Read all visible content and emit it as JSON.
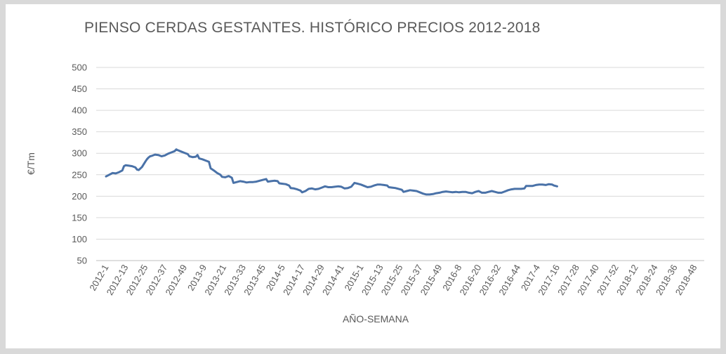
{
  "chart_data": {
    "type": "line",
    "title": "PIENSO CERDAS GESTANTES. HISTÓRICO PRECIOS 2012-2018",
    "xlabel": "AÑO-SEMANA",
    "ylabel": "€/Tm",
    "ylim": [
      50,
      500
    ],
    "yticks": [
      50,
      100,
      150,
      200,
      250,
      300,
      350,
      400,
      450,
      500
    ],
    "grid": true,
    "legend": "none",
    "line_color": "#4a72a8",
    "x_categories": [
      "2012-1",
      "2012-13",
      "2012-25",
      "2012-37",
      "2012-49",
      "2013-9",
      "2013-21",
      "2013-33",
      "2013-45",
      "2014-5",
      "2014-17",
      "2014-29",
      "2014-41",
      "2015-1",
      "2015-13",
      "2015-25",
      "2015-37",
      "2015-49",
      "2016-8",
      "2016-20",
      "2016-32",
      "2016-44",
      "2017-4",
      "2017-16",
      "2017-28",
      "2017-40",
      "2017-52",
      "2018-12",
      "2018-24",
      "2018-36",
      "2018-48"
    ],
    "series": [
      {
        "points": [
          [
            0,
            246
          ],
          [
            2,
            250
          ],
          [
            4,
            254
          ],
          [
            6,
            253
          ],
          [
            8,
            256
          ],
          [
            10,
            260
          ],
          [
            11,
            270
          ],
          [
            12,
            272
          ],
          [
            14,
            271
          ],
          [
            16,
            270
          ],
          [
            18,
            267
          ],
          [
            19,
            262
          ],
          [
            20,
            261
          ],
          [
            22,
            268
          ],
          [
            24,
            280
          ],
          [
            25,
            286
          ],
          [
            26,
            290
          ],
          [
            27,
            293
          ],
          [
            28,
            294
          ],
          [
            30,
            297
          ],
          [
            32,
            296
          ],
          [
            34,
            293
          ],
          [
            36,
            295
          ],
          [
            38,
            299
          ],
          [
            40,
            302
          ],
          [
            42,
            305
          ],
          [
            43,
            309
          ],
          [
            44,
            307
          ],
          [
            46,
            304
          ],
          [
            48,
            301
          ],
          [
            50,
            298
          ],
          [
            51,
            293
          ],
          [
            53,
            291
          ],
          [
            55,
            292
          ],
          [
            56,
            296
          ],
          [
            57,
            288
          ],
          [
            59,
            286
          ],
          [
            61,
            283
          ],
          [
            63,
            280
          ],
          [
            64,
            265
          ],
          [
            66,
            260
          ],
          [
            68,
            254
          ],
          [
            70,
            250
          ],
          [
            71,
            245
          ],
          [
            73,
            244
          ],
          [
            75,
            247
          ],
          [
            77,
            243
          ],
          [
            78,
            231
          ],
          [
            80,
            233
          ],
          [
            82,
            235
          ],
          [
            84,
            234
          ],
          [
            86,
            232
          ],
          [
            88,
            233
          ],
          [
            90,
            233
          ],
          [
            92,
            234
          ],
          [
            94,
            236
          ],
          [
            96,
            238
          ],
          [
            98,
            240
          ],
          [
            99,
            234
          ],
          [
            101,
            235
          ],
          [
            103,
            236
          ],
          [
            105,
            235
          ],
          [
            106,
            230
          ],
          [
            108,
            229
          ],
          [
            110,
            228
          ],
          [
            112,
            225
          ],
          [
            113,
            219
          ],
          [
            115,
            218
          ],
          [
            117,
            216
          ],
          [
            119,
            213
          ],
          [
            120,
            209
          ],
          [
            122,
            212
          ],
          [
            124,
            217
          ],
          [
            126,
            218
          ],
          [
            128,
            216
          ],
          [
            130,
            217
          ],
          [
            132,
            220
          ],
          [
            134,
            223
          ],
          [
            136,
            221
          ],
          [
            138,
            221
          ],
          [
            140,
            222
          ],
          [
            142,
            223
          ],
          [
            144,
            222
          ],
          [
            146,
            218
          ],
          [
            148,
            219
          ],
          [
            150,
            222
          ],
          [
            152,
            231
          ],
          [
            154,
            229
          ],
          [
            156,
            227
          ],
          [
            158,
            224
          ],
          [
            160,
            221
          ],
          [
            162,
            222
          ],
          [
            164,
            225
          ],
          [
            166,
            227
          ],
          [
            168,
            227
          ],
          [
            170,
            226
          ],
          [
            172,
            225
          ],
          [
            173,
            221
          ],
          [
            175,
            220
          ],
          [
            177,
            219
          ],
          [
            179,
            217
          ],
          [
            181,
            215
          ],
          [
            182,
            210
          ],
          [
            184,
            212
          ],
          [
            186,
            214
          ],
          [
            188,
            213
          ],
          [
            190,
            212
          ],
          [
            192,
            209
          ],
          [
            194,
            206
          ],
          [
            196,
            204
          ],
          [
            198,
            204
          ],
          [
            200,
            205
          ],
          [
            202,
            207
          ],
          [
            204,
            208
          ],
          [
            206,
            210
          ],
          [
            208,
            211
          ],
          [
            210,
            210
          ],
          [
            212,
            209
          ],
          [
            214,
            210
          ],
          [
            216,
            209
          ],
          [
            218,
            210
          ],
          [
            220,
            210
          ],
          [
            222,
            208
          ],
          [
            224,
            207
          ],
          [
            226,
            210
          ],
          [
            228,
            212
          ],
          [
            230,
            208
          ],
          [
            232,
            208
          ],
          [
            234,
            210
          ],
          [
            236,
            212
          ],
          [
            238,
            210
          ],
          [
            240,
            208
          ],
          [
            242,
            208
          ],
          [
            244,
            211
          ],
          [
            246,
            214
          ],
          [
            248,
            216
          ],
          [
            250,
            217
          ],
          [
            252,
            217
          ],
          [
            254,
            217
          ],
          [
            256,
            218
          ],
          [
            257,
            224
          ],
          [
            259,
            224
          ],
          [
            261,
            224
          ],
          [
            263,
            226
          ],
          [
            265,
            227
          ],
          [
            267,
            227
          ],
          [
            269,
            226
          ],
          [
            271,
            228
          ],
          [
            273,
            227
          ],
          [
            274,
            225
          ],
          [
            276,
            223
          ]
        ]
      }
    ]
  }
}
